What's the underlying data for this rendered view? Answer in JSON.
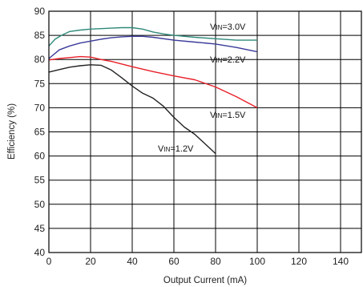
{
  "chart_data": {
    "type": "line",
    "xlabel": "Output Current (mA)",
    "ylabel": "Efficiency (%)",
    "xlim": [
      0,
      150
    ],
    "ylim": [
      40,
      90
    ],
    "xticks": [
      0,
      20,
      40,
      60,
      80,
      100,
      120,
      140
    ],
    "yticks": [
      40,
      45,
      50,
      55,
      60,
      65,
      70,
      75,
      80,
      85,
      90
    ],
    "grid": true,
    "series": [
      {
        "label_prefix": "V",
        "label_sub": "IN",
        "label_suffix": "=3.0V",
        "color": "#2f8a7a",
        "x": [
          0,
          3,
          6,
          10,
          15,
          20,
          25,
          30,
          35,
          40,
          45,
          50,
          55,
          60,
          70,
          80,
          90,
          100
        ],
        "y": [
          82.8,
          84.2,
          85.0,
          85.8,
          86.1,
          86.3,
          86.4,
          86.5,
          86.6,
          86.6,
          86.3,
          85.7,
          85.3,
          85.0,
          84.6,
          84.3,
          84.0,
          84.0
        ]
      },
      {
        "label_prefix": "V",
        "label_sub": "IN",
        "label_suffix": "=2.2V",
        "color": "#3a3a9a",
        "x": [
          0,
          5,
          10,
          15,
          20,
          25,
          30,
          35,
          40,
          45,
          50,
          60,
          70,
          80,
          90,
          100
        ],
        "y": [
          80.2,
          82.0,
          82.8,
          83.4,
          83.8,
          84.2,
          84.5,
          84.7,
          84.8,
          84.8,
          84.6,
          84.0,
          83.6,
          83.2,
          82.5,
          81.6
        ]
      },
      {
        "label_prefix": "V",
        "label_sub": "IN",
        "label_suffix": "=1.5V",
        "color": "#e8202a",
        "x": [
          0,
          5,
          10,
          15,
          20,
          25,
          30,
          40,
          50,
          60,
          70,
          80,
          90,
          100
        ],
        "y": [
          79.9,
          80.2,
          80.4,
          80.6,
          80.5,
          80.0,
          79.6,
          78.5,
          77.5,
          76.6,
          75.8,
          74.3,
          72.3,
          70.0
        ]
      },
      {
        "label_prefix": "V",
        "label_sub": "IN",
        "label_suffix": "=1.2V",
        "color": "#222222",
        "x": [
          0,
          5,
          10,
          15,
          20,
          25,
          30,
          35,
          40,
          45,
          50,
          55,
          60,
          65,
          70,
          75,
          80
        ],
        "y": [
          77.4,
          77.9,
          78.4,
          78.7,
          78.9,
          78.8,
          77.8,
          76.2,
          74.5,
          73.0,
          72.0,
          70.3,
          68.0,
          66.0,
          64.5,
          62.5,
          60.5
        ]
      }
    ]
  }
}
